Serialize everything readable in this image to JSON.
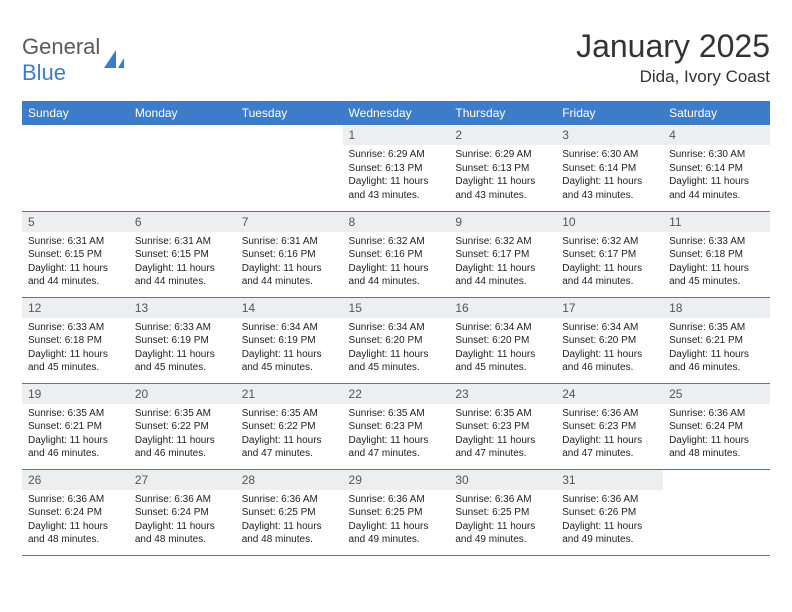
{
  "brand": {
    "text1": "General",
    "text2": "Blue",
    "logo_color": "#3d7cc9",
    "text_gray": "#5a5a5a"
  },
  "title": "January 2025",
  "location": "Dida, Ivory Coast",
  "colors": {
    "header_bg": "#3d7cc9",
    "header_fg": "#ffffff",
    "daynum_bg": "#eceef0",
    "border": "#3d7cc9"
  },
  "weekdays": [
    "Sunday",
    "Monday",
    "Tuesday",
    "Wednesday",
    "Thursday",
    "Friday",
    "Saturday"
  ],
  "weeks": [
    [
      {
        "n": "",
        "lines": []
      },
      {
        "n": "",
        "lines": []
      },
      {
        "n": "",
        "lines": []
      },
      {
        "n": "1",
        "lines": [
          "Sunrise: 6:29 AM",
          "Sunset: 6:13 PM",
          "Daylight: 11 hours and 43 minutes."
        ]
      },
      {
        "n": "2",
        "lines": [
          "Sunrise: 6:29 AM",
          "Sunset: 6:13 PM",
          "Daylight: 11 hours and 43 minutes."
        ]
      },
      {
        "n": "3",
        "lines": [
          "Sunrise: 6:30 AM",
          "Sunset: 6:14 PM",
          "Daylight: 11 hours and 43 minutes."
        ]
      },
      {
        "n": "4",
        "lines": [
          "Sunrise: 6:30 AM",
          "Sunset: 6:14 PM",
          "Daylight: 11 hours and 44 minutes."
        ]
      }
    ],
    [
      {
        "n": "5",
        "lines": [
          "Sunrise: 6:31 AM",
          "Sunset: 6:15 PM",
          "Daylight: 11 hours and 44 minutes."
        ]
      },
      {
        "n": "6",
        "lines": [
          "Sunrise: 6:31 AM",
          "Sunset: 6:15 PM",
          "Daylight: 11 hours and 44 minutes."
        ]
      },
      {
        "n": "7",
        "lines": [
          "Sunrise: 6:31 AM",
          "Sunset: 6:16 PM",
          "Daylight: 11 hours and 44 minutes."
        ]
      },
      {
        "n": "8",
        "lines": [
          "Sunrise: 6:32 AM",
          "Sunset: 6:16 PM",
          "Daylight: 11 hours and 44 minutes."
        ]
      },
      {
        "n": "9",
        "lines": [
          "Sunrise: 6:32 AM",
          "Sunset: 6:17 PM",
          "Daylight: 11 hours and 44 minutes."
        ]
      },
      {
        "n": "10",
        "lines": [
          "Sunrise: 6:32 AM",
          "Sunset: 6:17 PM",
          "Daylight: 11 hours and 44 minutes."
        ]
      },
      {
        "n": "11",
        "lines": [
          "Sunrise: 6:33 AM",
          "Sunset: 6:18 PM",
          "Daylight: 11 hours and 45 minutes."
        ]
      }
    ],
    [
      {
        "n": "12",
        "lines": [
          "Sunrise: 6:33 AM",
          "Sunset: 6:18 PM",
          "Daylight: 11 hours and 45 minutes."
        ]
      },
      {
        "n": "13",
        "lines": [
          "Sunrise: 6:33 AM",
          "Sunset: 6:19 PM",
          "Daylight: 11 hours and 45 minutes."
        ]
      },
      {
        "n": "14",
        "lines": [
          "Sunrise: 6:34 AM",
          "Sunset: 6:19 PM",
          "Daylight: 11 hours and 45 minutes."
        ]
      },
      {
        "n": "15",
        "lines": [
          "Sunrise: 6:34 AM",
          "Sunset: 6:20 PM",
          "Daylight: 11 hours and 45 minutes."
        ]
      },
      {
        "n": "16",
        "lines": [
          "Sunrise: 6:34 AM",
          "Sunset: 6:20 PM",
          "Daylight: 11 hours and 45 minutes."
        ]
      },
      {
        "n": "17",
        "lines": [
          "Sunrise: 6:34 AM",
          "Sunset: 6:20 PM",
          "Daylight: 11 hours and 46 minutes."
        ]
      },
      {
        "n": "18",
        "lines": [
          "Sunrise: 6:35 AM",
          "Sunset: 6:21 PM",
          "Daylight: 11 hours and 46 minutes."
        ]
      }
    ],
    [
      {
        "n": "19",
        "lines": [
          "Sunrise: 6:35 AM",
          "Sunset: 6:21 PM",
          "Daylight: 11 hours and 46 minutes."
        ]
      },
      {
        "n": "20",
        "lines": [
          "Sunrise: 6:35 AM",
          "Sunset: 6:22 PM",
          "Daylight: 11 hours and 46 minutes."
        ]
      },
      {
        "n": "21",
        "lines": [
          "Sunrise: 6:35 AM",
          "Sunset: 6:22 PM",
          "Daylight: 11 hours and 47 minutes."
        ]
      },
      {
        "n": "22",
        "lines": [
          "Sunrise: 6:35 AM",
          "Sunset: 6:23 PM",
          "Daylight: 11 hours and 47 minutes."
        ]
      },
      {
        "n": "23",
        "lines": [
          "Sunrise: 6:35 AM",
          "Sunset: 6:23 PM",
          "Daylight: 11 hours and 47 minutes."
        ]
      },
      {
        "n": "24",
        "lines": [
          "Sunrise: 6:36 AM",
          "Sunset: 6:23 PM",
          "Daylight: 11 hours and 47 minutes."
        ]
      },
      {
        "n": "25",
        "lines": [
          "Sunrise: 6:36 AM",
          "Sunset: 6:24 PM",
          "Daylight: 11 hours and 48 minutes."
        ]
      }
    ],
    [
      {
        "n": "26",
        "lines": [
          "Sunrise: 6:36 AM",
          "Sunset: 6:24 PM",
          "Daylight: 11 hours and 48 minutes."
        ]
      },
      {
        "n": "27",
        "lines": [
          "Sunrise: 6:36 AM",
          "Sunset: 6:24 PM",
          "Daylight: 11 hours and 48 minutes."
        ]
      },
      {
        "n": "28",
        "lines": [
          "Sunrise: 6:36 AM",
          "Sunset: 6:25 PM",
          "Daylight: 11 hours and 48 minutes."
        ]
      },
      {
        "n": "29",
        "lines": [
          "Sunrise: 6:36 AM",
          "Sunset: 6:25 PM",
          "Daylight: 11 hours and 49 minutes."
        ]
      },
      {
        "n": "30",
        "lines": [
          "Sunrise: 6:36 AM",
          "Sunset: 6:25 PM",
          "Daylight: 11 hours and 49 minutes."
        ]
      },
      {
        "n": "31",
        "lines": [
          "Sunrise: 6:36 AM",
          "Sunset: 6:26 PM",
          "Daylight: 11 hours and 49 minutes."
        ]
      },
      {
        "n": "",
        "lines": []
      }
    ]
  ]
}
